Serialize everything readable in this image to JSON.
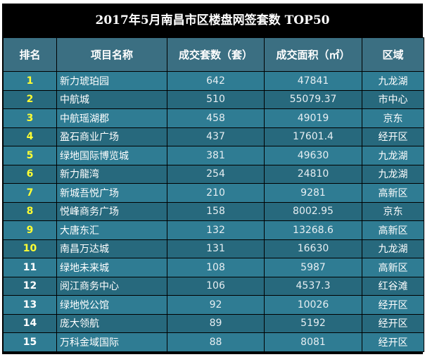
{
  "title": "2017年5月南昌市区楼盘网签套数 TOP50",
  "headers": [
    "排名",
    "项目名称",
    "成交套数（套）",
    "成交面积（㎡）",
    "区域"
  ],
  "rows": [
    {
      "rank": "1",
      "name": "新力琥珀园",
      "units": "642",
      "area": "47841",
      "district": "九龙湖"
    },
    {
      "rank": "2",
      "name": "中航城",
      "units": "510",
      "area": "55079.37",
      "district": "市中心"
    },
    {
      "rank": "3",
      "name": "中航瑶湖郡",
      "units": "458",
      "area": "49019",
      "district": "京东"
    },
    {
      "rank": "4",
      "name": "盈石商业广场",
      "units": "437",
      "area": "17601.4",
      "district": "经开区"
    },
    {
      "rank": "5",
      "name": "绿地国际博览城",
      "units": "381",
      "area": "49630",
      "district": "九龙湖"
    },
    {
      "rank": "6",
      "name": "新力龍湾",
      "units": "254",
      "area": "24810",
      "district": "九龙湖"
    },
    {
      "rank": "7",
      "name": "新城吾悦广场",
      "units": "210",
      "area": "9281",
      "district": "高新区"
    },
    {
      "rank": "8",
      "name": "悦峰商务广场",
      "units": "158",
      "area": "8002.95",
      "district": "京东"
    },
    {
      "rank": "9",
      "name": "大唐东汇",
      "units": "132",
      "area": "13268.6",
      "district": "高新区"
    },
    {
      "rank": "10",
      "name": "南昌万达城",
      "units": "131",
      "area": "16630",
      "district": "九龙湖"
    },
    {
      "rank": "11",
      "name": "绿地未来城",
      "units": "108",
      "area": "5987",
      "district": "高新区"
    },
    {
      "rank": "12",
      "name": "阅江商务中心",
      "units": "106",
      "area": "4537.3",
      "district": "红谷滩"
    },
    {
      "rank": "13",
      "name": "绿地悦公馆",
      "units": "92",
      "area": "10026",
      "district": "经开区"
    },
    {
      "rank": "14",
      "name": "庞大领航",
      "units": "89",
      "area": "5192",
      "district": "经开区"
    },
    {
      "rank": "15",
      "name": "万科金域国际",
      "units": "88",
      "area": "8081",
      "district": "经开区"
    }
  ],
  "colors": {
    "header_bg": "#3b6f82",
    "row_bg": "#2f7c93",
    "row_alt_bg": "#27697d",
    "top_rank": "#ffff33"
  }
}
